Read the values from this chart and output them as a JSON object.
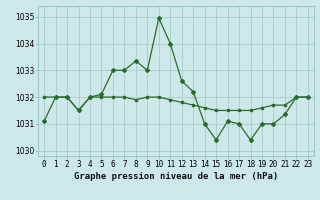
{
  "title": "Graphe pression niveau de la mer (hPa)",
  "background_color": "#cce8e8",
  "grid_color": "#aacccc",
  "line_color": "#2d6b2d",
  "series1": {
    "x": [
      0,
      1,
      2,
      3,
      4,
      5,
      6,
      7,
      8,
      9,
      10,
      11,
      12,
      13,
      14,
      15,
      16,
      17,
      18,
      19,
      20,
      21,
      22,
      23
    ],
    "y": [
      1032.0,
      1032.0,
      1032.0,
      1031.5,
      1032.0,
      1032.0,
      1032.0,
      1032.0,
      1031.9,
      1032.0,
      1032.0,
      1031.9,
      1031.8,
      1031.7,
      1031.6,
      1031.5,
      1031.5,
      1031.5,
      1031.5,
      1031.6,
      1031.7,
      1031.7,
      1032.0,
      1032.0
    ]
  },
  "series2": {
    "x": [
      0,
      1,
      2,
      3,
      4,
      5,
      6,
      7,
      8,
      9,
      10,
      11,
      12,
      13,
      14,
      15,
      16,
      17,
      18,
      19,
      20,
      21,
      22,
      23
    ],
    "y": [
      1031.1,
      1032.0,
      1032.0,
      1031.5,
      1032.0,
      1032.1,
      1033.0,
      1033.0,
      1033.35,
      1033.0,
      1034.95,
      1034.0,
      1032.6,
      1032.2,
      1031.0,
      1030.4,
      1031.1,
      1031.0,
      1030.4,
      1031.0,
      1031.0,
      1031.35,
      1032.0,
      1032.0
    ]
  },
  "ylim": [
    1029.8,
    1035.4
  ],
  "yticks": [
    1030,
    1031,
    1032,
    1033,
    1034,
    1035
  ],
  "xlim": [
    -0.5,
    23.5
  ],
  "xticks": [
    0,
    1,
    2,
    3,
    4,
    5,
    6,
    7,
    8,
    9,
    10,
    11,
    12,
    13,
    14,
    15,
    16,
    17,
    18,
    19,
    20,
    21,
    22,
    23
  ],
  "xtick_labels": [
    "0",
    "1",
    "2",
    "3",
    "4",
    "5",
    "6",
    "7",
    "8",
    "9",
    "10",
    "11",
    "12",
    "13",
    "14",
    "15",
    "16",
    "17",
    "18",
    "19",
    "20",
    "21",
    "22",
    "23"
  ],
  "title_fontsize": 6.5,
  "tick_fontsize": 5.5,
  "linewidth": 0.9,
  "markersize": 2.0
}
